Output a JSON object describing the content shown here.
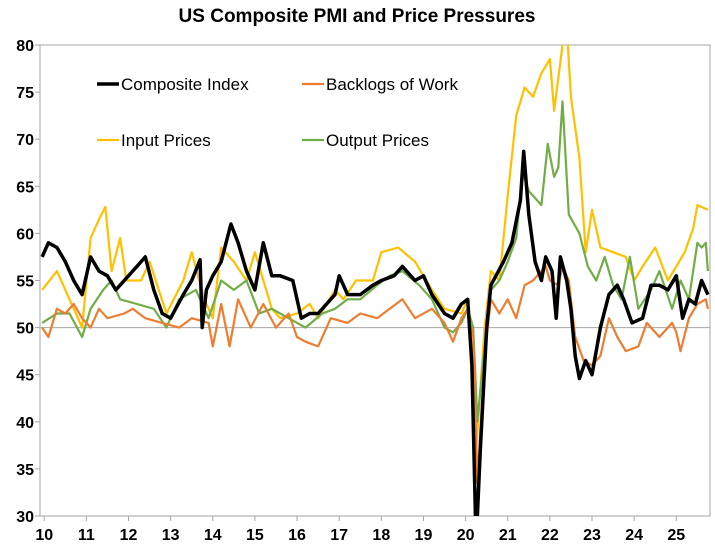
{
  "chart_data": {
    "type": "line",
    "title": "US Composite PMI and Price Pressures",
    "xlabel": "",
    "ylabel": "",
    "ylim": [
      30,
      80
    ],
    "yticks": [
      30,
      35,
      40,
      45,
      50,
      55,
      60,
      65,
      70,
      75,
      80
    ],
    "xlim": [
      2009.9,
      2025.8
    ],
    "xticks": [
      2010,
      2011,
      2012,
      2013,
      2014,
      2015,
      2016,
      2017,
      2018,
      2019,
      2020,
      2021,
      2022,
      2023,
      2024,
      2025
    ],
    "xtick_labels": [
      "10",
      "11",
      "12",
      "13",
      "14",
      "15",
      "16",
      "17",
      "18",
      "19",
      "20",
      "21",
      "22",
      "23",
      "24",
      "25"
    ],
    "reference_line": 50,
    "grid": false,
    "legend_placement": "top-left",
    "series": [
      {
        "name": "Composite Index",
        "color": "#000000",
        "x": [
          2009.95,
          2010.1,
          2010.3,
          2010.5,
          2010.7,
          2010.9,
          2011.1,
          2011.3,
          2011.5,
          2011.7,
          2012.0,
          2012.2,
          2012.4,
          2012.6,
          2012.8,
          2013.0,
          2013.3,
          2013.5,
          2013.7,
          2013.75,
          2013.85,
          2014.0,
          2014.2,
          2014.43,
          2014.6,
          2014.8,
          2015.0,
          2015.2,
          2015.4,
          2015.6,
          2015.9,
          2016.1,
          2016.3,
          2016.5,
          2016.9,
          2017.0,
          2017.2,
          2017.5,
          2017.8,
          2018.0,
          2018.3,
          2018.5,
          2018.8,
          2019.0,
          2019.2,
          2019.5,
          2019.7,
          2019.9,
          2020.05,
          2020.15,
          2020.25,
          2020.35,
          2020.5,
          2020.6,
          2020.9,
          2021.1,
          2021.3,
          2021.38,
          2021.5,
          2021.65,
          2021.8,
          2021.9,
          2022.05,
          2022.15,
          2022.25,
          2022.4,
          2022.5,
          2022.6,
          2022.7,
          2022.85,
          2023.0,
          2023.2,
          2023.4,
          2023.6,
          2023.75,
          2023.95,
          2024.2,
          2024.4,
          2024.6,
          2024.8,
          2025.0,
          2025.15,
          2025.3,
          2025.45,
          2025.6,
          2025.75
        ],
        "y": [
          57.5,
          59,
          58.5,
          57,
          55,
          53.5,
          57.5,
          56,
          55.5,
          54,
          55.5,
          56.5,
          57.5,
          54,
          51.5,
          51,
          53.5,
          55,
          57.2,
          50,
          54,
          55.5,
          57,
          61,
          59,
          56,
          54,
          59,
          55.5,
          55.5,
          55,
          51,
          51.5,
          51.5,
          53.5,
          55.5,
          53.5,
          53.5,
          54.5,
          55,
          55.5,
          56.5,
          55,
          55.5,
          53.5,
          51.5,
          51,
          52.5,
          53,
          46,
          27,
          37,
          50,
          54.5,
          57,
          59,
          63.5,
          68.7,
          62,
          57,
          55,
          57.5,
          56,
          51,
          57.5,
          55,
          52,
          47,
          44.6,
          46.5,
          45,
          50,
          53.5,
          54.5,
          53,
          50.5,
          51,
          54.5,
          54.5,
          54,
          55.5,
          51,
          53,
          52.5,
          55,
          53.5
        ]
      },
      {
        "name": "Backlogs of Work",
        "color": "#ED7D31",
        "x": [
          2009.95,
          2010.1,
          2010.3,
          2010.5,
          2010.7,
          2010.9,
          2011.1,
          2011.3,
          2011.5,
          2011.9,
          2012.1,
          2012.4,
          2012.8,
          2013.2,
          2013.5,
          2013.9,
          2014.0,
          2014.2,
          2014.4,
          2014.6,
          2014.9,
          2015.2,
          2015.5,
          2015.8,
          2016.0,
          2016.2,
          2016.5,
          2016.8,
          2017.2,
          2017.5,
          2017.9,
          2018.2,
          2018.5,
          2018.8,
          2019.2,
          2019.5,
          2019.7,
          2019.9,
          2020.05,
          2020.18,
          2020.28,
          2020.45,
          2020.6,
          2020.8,
          2021.0,
          2021.2,
          2021.4,
          2021.6,
          2021.9,
          2022.0,
          2022.2,
          2022.3,
          2022.45,
          2022.6,
          2022.8,
          2023.0,
          2023.2,
          2023.4,
          2023.6,
          2023.8,
          2024.1,
          2024.3,
          2024.6,
          2024.9,
          2025.0,
          2025.1,
          2025.3,
          2025.5,
          2025.7,
          2025.75
        ],
        "y": [
          50,
          49,
          52,
          51.5,
          52.5,
          51,
          50,
          52,
          51,
          51.5,
          52,
          51,
          50.5,
          50,
          51,
          50.5,
          48,
          52.5,
          48,
          53,
          50,
          52.5,
          50,
          51.5,
          49,
          48.5,
          48,
          51,
          50.5,
          51.5,
          51,
          52,
          53,
          51,
          52,
          50.5,
          48.5,
          51,
          52,
          49,
          33.5,
          47,
          53,
          51.5,
          53,
          51,
          54.5,
          55,
          56.5,
          55,
          54.5,
          56.5,
          55,
          49,
          46.5,
          46,
          47,
          51,
          49,
          47.5,
          48,
          50.5,
          49,
          50.5,
          49.5,
          47.5,
          51,
          52.5,
          53,
          52
        ]
      },
      {
        "name": "Input Prices",
        "color": "#FFC000",
        "x": [
          2009.95,
          2010.3,
          2010.6,
          2010.9,
          2011.1,
          2011.3,
          2011.45,
          2011.6,
          2011.8,
          2011.95,
          2012.3,
          2012.5,
          2012.9,
          2013.3,
          2013.5,
          2013.8,
          2014.0,
          2014.2,
          2014.5,
          2014.8,
          2015.0,
          2015.4,
          2015.6,
          2016.0,
          2016.3,
          2016.5,
          2016.9,
          2017.1,
          2017.4,
          2017.8,
          2018.0,
          2018.4,
          2018.8,
          2019.2,
          2019.5,
          2019.9,
          2020.05,
          2020.25,
          2020.45,
          2020.6,
          2020.8,
          2021.0,
          2021.2,
          2021.4,
          2021.6,
          2021.8,
          2022.0,
          2022.1,
          2022.3,
          2022.4,
          2022.5,
          2022.7,
          2022.85,
          2023.0,
          2023.2,
          2023.5,
          2023.8,
          2024.0,
          2024.2,
          2024.5,
          2024.8,
          2025.0,
          2025.2,
          2025.4,
          2025.5,
          2025.75
        ],
        "y": [
          54,
          56,
          53,
          50,
          59.5,
          61.5,
          62.8,
          56,
          59.5,
          55,
          55,
          57,
          51.5,
          55,
          58,
          53,
          51,
          58.5,
          57,
          55,
          58,
          52,
          51,
          51.5,
          52.5,
          51,
          54,
          53,
          55,
          55,
          58,
          58.5,
          57,
          54,
          52,
          51.5,
          53,
          37,
          50,
          56,
          55,
          64,
          72.5,
          75.5,
          74.5,
          77,
          78.5,
          73,
          80,
          82,
          74.5,
          68,
          58,
          62.5,
          58.5,
          58,
          57.5,
          55,
          56.5,
          58.5,
          55,
          56.5,
          58,
          60.5,
          63,
          62.5
        ]
      },
      {
        "name": "Output Prices",
        "color": "#70AD47",
        "x": [
          2009.95,
          2010.3,
          2010.6,
          2010.9,
          2011.1,
          2011.4,
          2011.6,
          2011.8,
          2012.2,
          2012.6,
          2012.9,
          2013.2,
          2013.6,
          2013.9,
          2014.2,
          2014.5,
          2014.8,
          2015.1,
          2015.4,
          2015.8,
          2016.2,
          2016.6,
          2016.9,
          2017.2,
          2017.5,
          2017.9,
          2018.2,
          2018.5,
          2018.9,
          2019.2,
          2019.5,
          2019.7,
          2019.9,
          2020.05,
          2020.18,
          2020.28,
          2020.45,
          2020.6,
          2020.8,
          2021.0,
          2021.2,
          2021.35,
          2021.5,
          2021.8,
          2021.95,
          2022.1,
          2022.2,
          2022.3,
          2022.45,
          2022.7,
          2022.9,
          2023.1,
          2023.3,
          2023.5,
          2023.7,
          2023.9,
          2024.1,
          2024.4,
          2024.6,
          2024.9,
          2025.1,
          2025.3,
          2025.5,
          2025.6,
          2025.7,
          2025.75
        ],
        "y": [
          50.5,
          51.5,
          51.5,
          49,
          52,
          54,
          55,
          53,
          52.5,
          52,
          50,
          53,
          54,
          51,
          55,
          54,
          55,
          51.5,
          52,
          51,
          50,
          51.5,
          52,
          53,
          53,
          54.5,
          55.5,
          56,
          54.5,
          53,
          50,
          49.5,
          50.5,
          52,
          50,
          40,
          48,
          54,
          55,
          57,
          59.5,
          66.5,
          64.5,
          63,
          69.5,
          66,
          67,
          74,
          62,
          60,
          56.5,
          55,
          57.5,
          54.5,
          53,
          57.5,
          52,
          54,
          56,
          52,
          55,
          53,
          59,
          58.5,
          59,
          56
        ]
      }
    ]
  }
}
